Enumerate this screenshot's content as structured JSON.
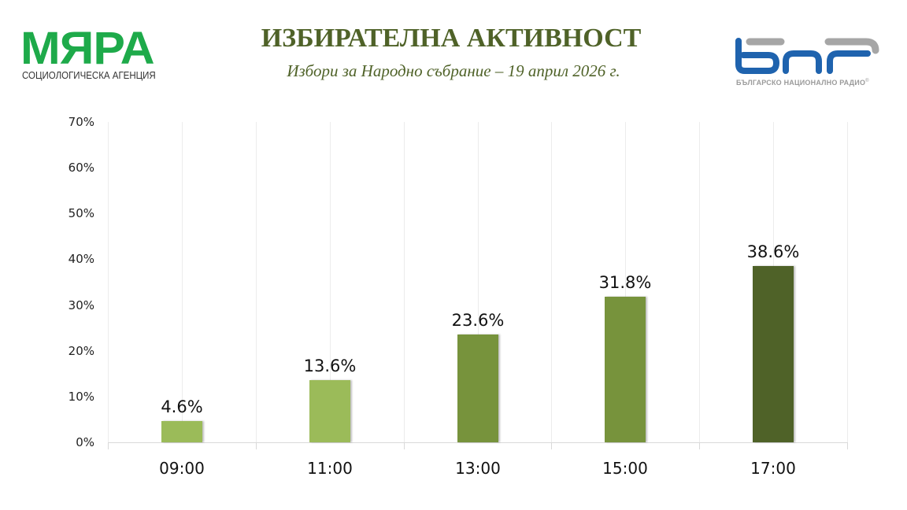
{
  "header": {
    "left_logo": {
      "brand": "МЯРА",
      "tagline": "СОЦИОЛОГИЧЕСКА АГЕНЦИЯ",
      "color": "#1EAA4A"
    },
    "title": "ИЗБИРАТЕЛНА АКТИВНОСТ",
    "subtitle": "Избори за Народно събрание – 19 април 2026 г.",
    "right_logo": {
      "mark": "БНР",
      "caption": "БЪЛГАРСКО НАЦИОНАЛНО РАДИО",
      "registered": "®",
      "blue": "#1F63AE",
      "gray": "#A6A6A6"
    }
  },
  "chart_data": {
    "type": "bar",
    "title": "ИЗБИРАТЕЛНА АКТИВНОСТ",
    "subtitle": "Избори за Народно събрание – 19 април 2026 г.",
    "categories": [
      "09:00",
      "11:00",
      "13:00",
      "15:00",
      "17:00"
    ],
    "values": [
      4.6,
      13.6,
      23.6,
      31.8,
      38.6
    ],
    "value_labels": [
      "4.6%",
      "13.6%",
      "23.6%",
      "31.8%",
      "38.6%"
    ],
    "bar_colors": [
      "#9BBB59",
      "#9BBB59",
      "#77933C",
      "#77933C",
      "#4F6228"
    ],
    "xlabel": "",
    "ylabel": "",
    "ylim": [
      0,
      70
    ],
    "yticks": [
      "0%",
      "10%",
      "20%",
      "30%",
      "40%",
      "50%",
      "60%",
      "70%"
    ],
    "grid": "vertical light gridlines",
    "legend": "none"
  }
}
